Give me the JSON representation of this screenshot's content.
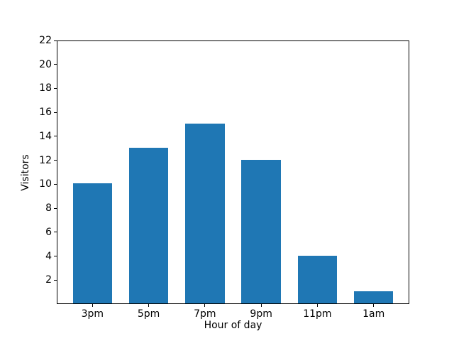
{
  "figure": {
    "background_color": "#ffffff",
    "axis_color": "#000000"
  },
  "chart_data": {
    "type": "bar",
    "title": "",
    "categories": [
      "3pm",
      "5pm",
      "7pm",
      "9pm",
      "11pm",
      "1am"
    ],
    "values": [
      10,
      13,
      15,
      12,
      4,
      1
    ],
    "xlabel": "Hour of day",
    "ylabel": "Visitors",
    "ylim": [
      0,
      22
    ],
    "yticks": [
      2,
      4,
      6,
      8,
      10,
      12,
      14,
      16,
      18,
      20,
      22
    ],
    "bar_color": "#1f77b4",
    "bar_width_fraction": 0.7,
    "grid": false,
    "legend_position": "none"
  }
}
